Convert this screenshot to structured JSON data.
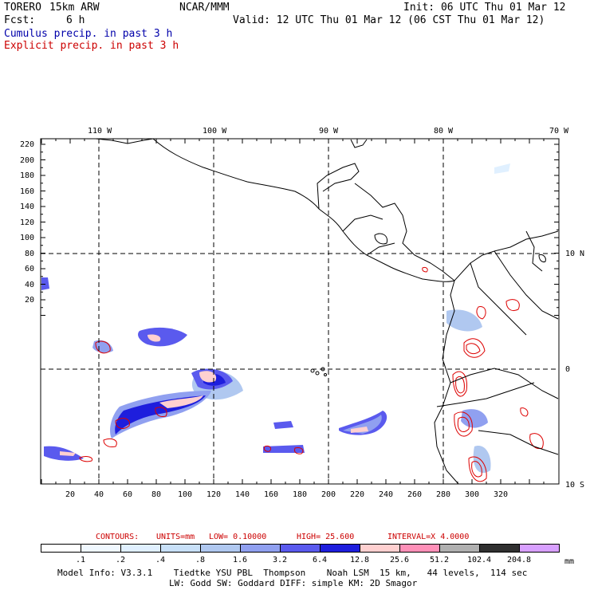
{
  "header": {
    "model": "TORERO",
    "resolution": "15km ARW",
    "org": "NCAR/MMM",
    "init": "Init: 06 UTC Thu 01 Mar 12",
    "fcst_label": "Fcst:",
    "fcst_value": "6 h",
    "valid": "Valid: 12 UTC Thu 01 Mar 12 (06 CST Thu 01 Mar 12)",
    "field1": "Cumulus precip. in past 3 h",
    "field2": "Explicit precip. in past 3 h"
  },
  "map": {
    "lon_labels": [
      "110 W",
      "100 W",
      "90 W",
      "80 W",
      "70 W"
    ],
    "lat_labels": [
      "10 N",
      "0",
      "10 S"
    ],
    "y_ticks": [
      "220",
      "200",
      "180",
      "160",
      "140",
      "120",
      "100",
      "80",
      "60",
      "40",
      "20"
    ],
    "x_ticks": [
      "20",
      "40",
      "60",
      "80",
      "100",
      "120",
      "140",
      "160",
      "180",
      "200",
      "220",
      "240",
      "260",
      "280",
      "300",
      "320"
    ]
  },
  "contours": {
    "label": "CONTOURS:",
    "units": "UNITS=mm",
    "low": "LOW= 0.10000",
    "high": "HIGH= 25.600",
    "interval": "INTERVAL=X 4.0000"
  },
  "legend": {
    "unit": "mm",
    "labels": [
      ".1",
      ".2",
      ".4",
      ".8",
      "1.6",
      "3.2",
      "6.4",
      "12.8",
      "25.6",
      "51.2",
      "102.4",
      "204.8"
    ],
    "colors": [
      "#ffffff",
      "#f0f8ff",
      "#e0f0ff",
      "#c8e0f8",
      "#b0c8f0",
      "#90a0f0",
      "#5a5aee",
      "#1e1edd",
      "#ffd0d0",
      "#ff90b8",
      "#b0b0b0",
      "#303030",
      "#d8a0ff"
    ]
  },
  "footer": {
    "line1": "Model Info: V3.3.1    Tiedtke YSU PBL  Thompson    Noah LSM  15 km,   44 levels,  114 sec",
    "line2": "LW: Godd SW: Goddard DIFF: simple KM: 2D Smagor"
  }
}
